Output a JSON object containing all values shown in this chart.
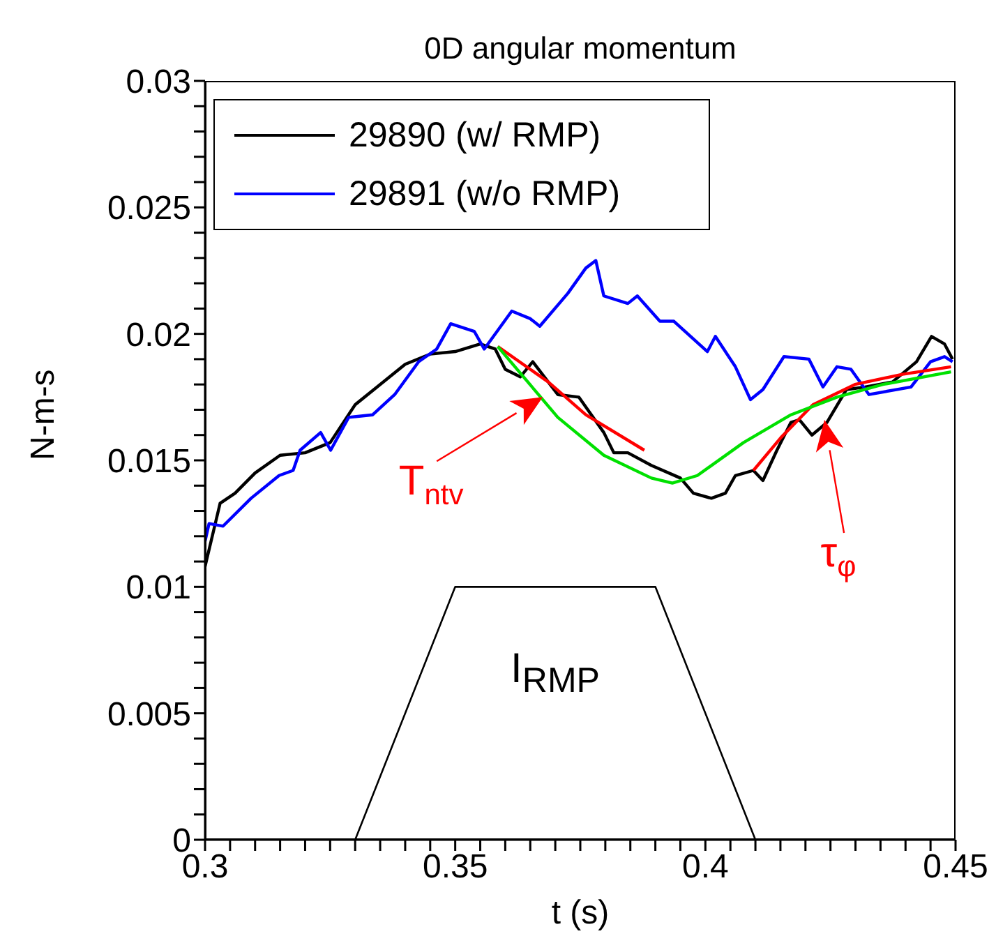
{
  "chart_data": {
    "type": "line",
    "title": "0D angular momentum",
    "xlabel": "t (s)",
    "ylabel": "N-m-s",
    "xlim": [
      0.3,
      0.45
    ],
    "ylim": [
      0,
      0.03
    ],
    "xticks": [
      0.3,
      {
        "value": 0.305,
        "label": null
      },
      {
        "value": 0.31,
        "label": null
      },
      {
        "value": 0.315,
        "label": null
      },
      {
        "value": 0.32,
        "label": null
      },
      {
        "value": 0.325,
        "label": null
      },
      {
        "value": 0.33,
        "label": null
      },
      {
        "value": 0.335,
        "label": null
      },
      {
        "value": 0.34,
        "label": null
      },
      {
        "value": 0.345,
        "label": null
      },
      0.35,
      {
        "value": 0.355,
        "label": null
      },
      {
        "value": 0.36,
        "label": null
      },
      {
        "value": 0.365,
        "label": null
      },
      {
        "value": 0.37,
        "label": null
      },
      {
        "value": 0.375,
        "label": null
      },
      {
        "value": 0.38,
        "label": null
      },
      {
        "value": 0.385,
        "label": null
      },
      {
        "value": 0.39,
        "label": null
      },
      {
        "value": 0.395,
        "label": null
      },
      0.4,
      {
        "value": 0.405,
        "label": null
      },
      {
        "value": 0.41,
        "label": null
      },
      {
        "value": 0.415,
        "label": null
      },
      {
        "value": 0.42,
        "label": null
      },
      {
        "value": 0.425,
        "label": null
      },
      {
        "value": 0.43,
        "label": null
      },
      {
        "value": 0.435,
        "label": null
      },
      {
        "value": 0.44,
        "label": null
      },
      {
        "value": 0.445,
        "label": null
      },
      0.45
    ],
    "yticks": [
      0,
      {
        "value": 0.001,
        "label": null
      },
      {
        "value": 0.002,
        "label": null
      },
      {
        "value": 0.003,
        "label": null
      },
      {
        "value": 0.004,
        "label": null
      },
      0.005,
      {
        "value": 0.006,
        "label": null
      },
      {
        "value": 0.007,
        "label": null
      },
      {
        "value": 0.008,
        "label": null
      },
      {
        "value": 0.009,
        "label": null
      },
      0.01,
      {
        "value": 0.011,
        "label": null
      },
      {
        "value": 0.012,
        "label": null
      },
      {
        "value": 0.013,
        "label": null
      },
      {
        "value": 0.014,
        "label": null
      },
      0.015,
      {
        "value": 0.016,
        "label": null
      },
      {
        "value": 0.017,
        "label": null
      },
      {
        "value": 0.018,
        "label": null
      },
      {
        "value": 0.019,
        "label": null
      },
      0.02,
      {
        "value": 0.021,
        "label": null
      },
      {
        "value": 0.022,
        "label": null
      },
      {
        "value": 0.023,
        "label": null
      },
      {
        "value": 0.024,
        "label": null
      },
      0.025,
      {
        "value": 0.026,
        "label": null
      },
      {
        "value": 0.027,
        "label": null
      },
      {
        "value": 0.028,
        "label": null
      },
      {
        "value": 0.029,
        "label": null
      },
      0.03
    ],
    "legend": "top left",
    "marker": "none",
    "line_style": "solid",
    "series": [
      {
        "name": "29890 (w/ RMP)",
        "color": "#000000",
        "x": [
          0.3,
          0.303,
          0.306,
          0.31,
          0.315,
          0.32,
          0.325,
          0.33,
          0.335,
          0.34,
          0.345,
          0.35,
          0.355,
          0.358,
          0.36,
          0.363,
          0.3655,
          0.3705,
          0.3747,
          0.3797,
          0.3817,
          0.3845,
          0.3892,
          0.395,
          0.3976,
          0.4012,
          0.404,
          0.406,
          0.4096,
          0.4115,
          0.4143,
          0.4171,
          0.4188,
          0.4213,
          0.4243,
          0.4282,
          0.4319,
          0.4374,
          0.4422,
          0.4452,
          0.4478,
          0.4494
        ],
        "values": [
          0.0108,
          0.0133,
          0.0137,
          0.0145,
          0.0152,
          0.0153,
          0.0157,
          0.0172,
          0.018,
          0.0188,
          0.0192,
          0.0193,
          0.0196,
          0.0194,
          0.0186,
          0.0183,
          0.0189,
          0.0176,
          0.0175,
          0.0161,
          0.0153,
          0.0153,
          0.0148,
          0.0143,
          0.0137,
          0.0135,
          0.0137,
          0.0144,
          0.0146,
          0.0142,
          0.0154,
          0.0165,
          0.0166,
          0.016,
          0.0165,
          0.0178,
          0.0179,
          0.0181,
          0.0189,
          0.0199,
          0.0196,
          0.019
        ]
      },
      {
        "name": "29891 (w/o RMP)",
        "color": "#0000ff",
        "x": [
          0.3,
          0.3008,
          0.3036,
          0.3092,
          0.3148,
          0.3176,
          0.319,
          0.3231,
          0.3251,
          0.3287,
          0.3335,
          0.3379,
          0.3427,
          0.3463,
          0.3491,
          0.3538,
          0.3558,
          0.3613,
          0.365,
          0.3669,
          0.3725,
          0.3761,
          0.3781,
          0.3797,
          0.3845,
          0.3864,
          0.3909,
          0.3937,
          0.4004,
          0.402,
          0.406,
          0.409,
          0.4115,
          0.4157,
          0.4207,
          0.4235,
          0.4263,
          0.4291,
          0.4327,
          0.4411,
          0.445,
          0.4478,
          0.4494
        ],
        "values": [
          0.0118,
          0.0125,
          0.0124,
          0.0135,
          0.0144,
          0.0146,
          0.0154,
          0.0161,
          0.0154,
          0.0167,
          0.0168,
          0.0176,
          0.0189,
          0.0194,
          0.0204,
          0.0201,
          0.0194,
          0.0209,
          0.0206,
          0.0203,
          0.0216,
          0.0226,
          0.0229,
          0.0215,
          0.0212,
          0.0215,
          0.0205,
          0.0205,
          0.0193,
          0.0199,
          0.0187,
          0.0174,
          0.0178,
          0.0191,
          0.019,
          0.0179,
          0.0187,
          0.0186,
          0.0176,
          0.0179,
          0.0189,
          0.0191,
          0.0189
        ]
      },
      {
        "color": "#ff0000",
        "x": [
          0.3585,
          0.3686,
          0.3761,
          0.3878
        ],
        "values": [
          0.0195,
          0.0181,
          0.0168,
          0.0154
        ]
      },
      {
        "color": "#ff0000",
        "x": [
          0.4096,
          0.4151,
          0.4215,
          0.4299,
          0.4394,
          0.4491
        ],
        "values": [
          0.0146,
          0.0159,
          0.0172,
          0.018,
          0.0184,
          0.0187
        ]
      },
      {
        "color": "#00e000",
        "x": [
          0.3585,
          0.3705,
          0.3797,
          0.3892,
          0.3934,
          0.3984,
          0.4076,
          0.4171,
          0.4263,
          0.4355,
          0.4491
        ],
        "values": [
          0.0195,
          0.0167,
          0.0152,
          0.0143,
          0.0141,
          0.0144,
          0.0157,
          0.0168,
          0.0175,
          0.018,
          0.0185
        ]
      },
      {
        "color": "#000000",
        "x": [
          0.33,
          0.35,
          0.39,
          0.41
        ],
        "values": [
          0,
          0.01,
          0.01,
          0
        ]
      }
    ],
    "annotations": [
      {
        "text": "T$_{ntv}$",
        "x": 0.3675,
        "y": 0.0175
      },
      {
        "text": "τ$_{φ}$",
        "x": 0.4238,
        "y": 0.0166
      },
      "I$_{RMP}$"
    ]
  }
}
